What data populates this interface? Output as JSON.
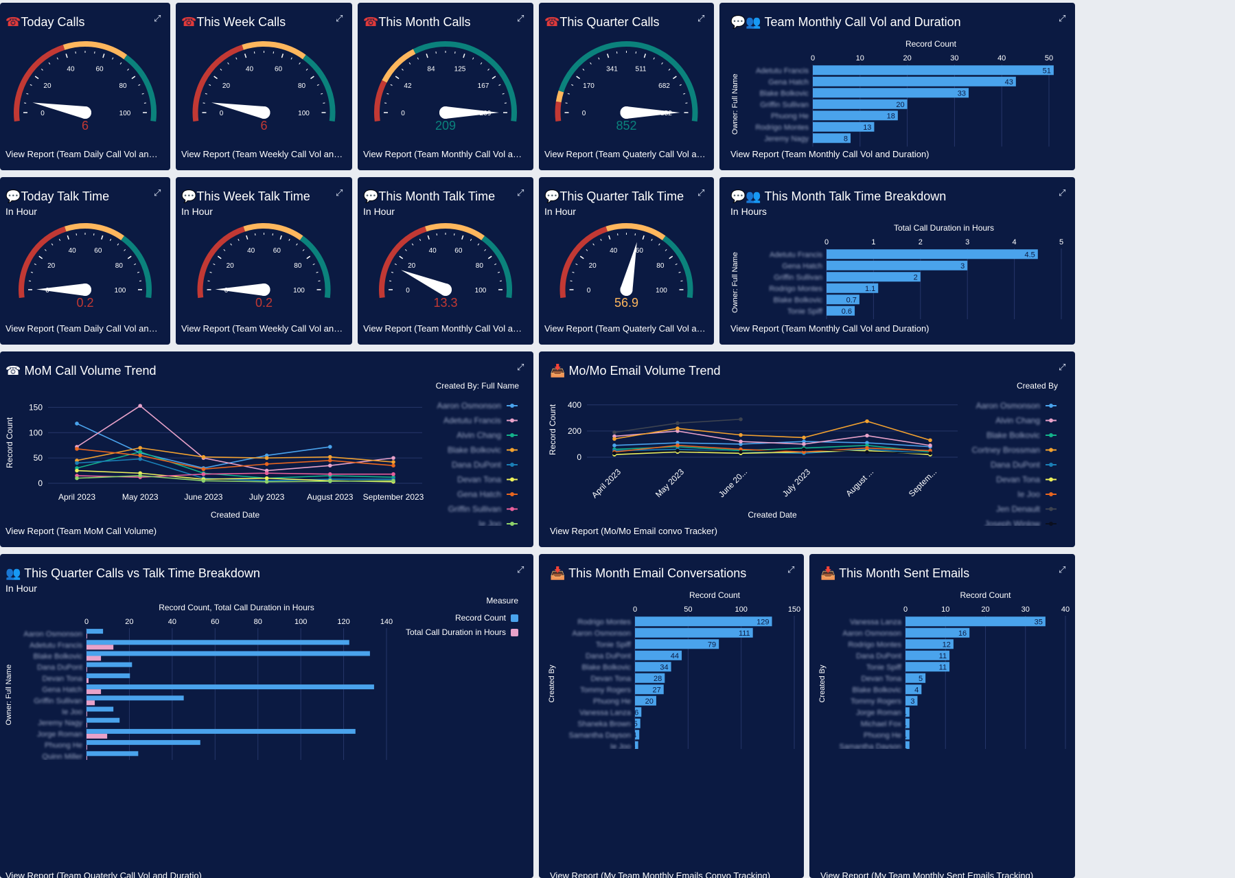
{
  "colors": {
    "bg": "#0b1a42",
    "red": "#c23934",
    "yellow": "#ffb75d",
    "green": "#0b827c",
    "bar": "#4aa3ec",
    "pink": "#e8a2c9",
    "needle": "#ffffff"
  },
  "gauges": [
    {
      "title": "Today Calls",
      "icon": "phone-icon",
      "subtitle": "",
      "ticks": [
        "0",
        "20",
        "40",
        "60",
        "80",
        "100"
      ],
      "max": 100,
      "value": 6,
      "display": "6",
      "segments": [
        [
          0,
          0.4,
          "red"
        ],
        [
          0.4,
          0.7,
          "yellow"
        ],
        [
          0.7,
          1,
          "green"
        ]
      ],
      "valueColor": "red",
      "footer": "View Report (Team Daily Call Vol and Duration)"
    },
    {
      "title": "This Week Calls",
      "icon": "phone-icon",
      "subtitle": "",
      "ticks": [
        "0",
        "20",
        "40",
        "60",
        "80",
        "100"
      ],
      "max": 100,
      "value": 6,
      "display": "6",
      "segments": [
        [
          0,
          0.4,
          "red"
        ],
        [
          0.4,
          0.7,
          "yellow"
        ],
        [
          0.7,
          1,
          "green"
        ]
      ],
      "valueColor": "red",
      "footer": "View Report (Team Weekly Call Vol and Duration)"
    },
    {
      "title": "This Month Calls",
      "icon": "phone-icon",
      "subtitle": "",
      "ticks": [
        "0",
        "42",
        "84",
        "125",
        "167",
        "209"
      ],
      "max": 209,
      "value": 209,
      "display": "209",
      "segments": [
        [
          0,
          0.15,
          "red"
        ],
        [
          0.15,
          0.35,
          "yellow"
        ],
        [
          0.35,
          1,
          "green"
        ]
      ],
      "valueColor": "green",
      "footer": "View Report (Team Monthly Call Vol and Duration)"
    },
    {
      "title": "This Quarter Calls",
      "icon": "phone-icon",
      "subtitle": "",
      "ticks": [
        "0",
        "170",
        "341",
        "511",
        "682",
        "852"
      ],
      "max": 852,
      "value": 852,
      "display": "852",
      "segments": [
        [
          0,
          0.05,
          "red"
        ],
        [
          0.05,
          0.1,
          "yellow"
        ],
        [
          0.1,
          1,
          "green"
        ]
      ],
      "valueColor": "green",
      "footer": "View Report (Team Quaterly Call Vol and Duration)"
    },
    {
      "title": "Today Talk Time",
      "icon": "chat-icon",
      "subtitle": "In Hour",
      "ticks": [
        "0",
        "20",
        "40",
        "60",
        "80",
        "100"
      ],
      "max": 100,
      "value": 0.2,
      "display": "0.2",
      "segments": [
        [
          0,
          0.4,
          "red"
        ],
        [
          0.4,
          0.7,
          "yellow"
        ],
        [
          0.7,
          1,
          "green"
        ]
      ],
      "valueColor": "red",
      "footer": "View Report (Team Daily Call Vol and Duration)"
    },
    {
      "title": "This Week Talk Time",
      "icon": "chat-icon",
      "subtitle": "In Hour",
      "ticks": [
        "0",
        "20",
        "40",
        "60",
        "80",
        "100"
      ],
      "max": 100,
      "value": 0.2,
      "display": "0.2",
      "segments": [
        [
          0,
          0.4,
          "red"
        ],
        [
          0.4,
          0.7,
          "yellow"
        ],
        [
          0.7,
          1,
          "green"
        ]
      ],
      "valueColor": "red",
      "footer": "View Report (Team Weekly Call Vol and Duration)"
    },
    {
      "title": "This Month Talk Time",
      "icon": "chat-icon",
      "subtitle": "In Hour",
      "ticks": [
        "0",
        "20",
        "40",
        "60",
        "80",
        "100"
      ],
      "max": 100,
      "value": 13.3,
      "display": "13.3",
      "segments": [
        [
          0,
          0.4,
          "red"
        ],
        [
          0.4,
          0.7,
          "yellow"
        ],
        [
          0.7,
          1,
          "green"
        ]
      ],
      "valueColor": "red",
      "footer": "View Report (Team Monthly Call Vol and Duration)"
    },
    {
      "title": "This Quarter Talk Time",
      "icon": "chat-icon",
      "subtitle": "In Hour",
      "ticks": [
        "0",
        "20",
        "40",
        "60",
        "80",
        "100"
      ],
      "max": 100,
      "value": 56.9,
      "display": "56.9",
      "segments": [
        [
          0,
          0.4,
          "red"
        ],
        [
          0.4,
          0.7,
          "yellow"
        ],
        [
          0.7,
          1,
          "green"
        ]
      ],
      "valueColor": "yellow",
      "footer": "View Report (Team Quaterly Call Vol and Duration)"
    }
  ],
  "cards": {
    "team_monthly": {
      "title": "Team Monthly Call Vol and Duration",
      "footer": "View Report (Team Monthly Call Vol and Duration)"
    },
    "talk_breakdown": {
      "title": "This Month Talk Time Breakdown",
      "subtitle": "In Hours",
      "footer": "View Report (Team Monthly Call Vol and Duration)"
    },
    "mom_calls": {
      "title": "MoM Call Volume Trend",
      "footer": "View Report (Team MoM Call Volume)"
    },
    "mom_email": {
      "title": "Mo/Mo Email Volume Trend",
      "footer": "View Report (Mo/Mo Email convo Tracker)"
    },
    "quarter_breakdown": {
      "title": "This Quarter Calls vs Talk Time Breakdown",
      "subtitle": "In Hour",
      "footer": "View Report (Team Quaterly Call Vol and Duratio)"
    },
    "email_convos": {
      "title": "This Month Email Conversations",
      "footer": "View Report (My Team Monthly Emails Convo Tracking)"
    },
    "sent_emails": {
      "title": "This Month Sent Emails",
      "footer": "View Report (My Team Monthly Sent Emails Tracking)"
    }
  },
  "chart_data": [
    {
      "id": "team_monthly",
      "type": "bar",
      "orientation": "horizontal",
      "xlabel": "Record Count",
      "ylabel": "Owner: Full Name",
      "xlim": [
        0,
        50
      ],
      "xticks": [
        "0",
        "10",
        "20",
        "30",
        "40",
        "50"
      ],
      "categories": [
        "Adetutu Francis",
        "Gena Hatch",
        "Blake Bolkovic",
        "Griffin Sullivan",
        "Phuong He",
        "Rodrigo Montes",
        "Jeremy Nagy"
      ],
      "values": [
        51,
        43,
        33,
        20,
        18,
        13,
        8
      ]
    },
    {
      "id": "talk_breakdown",
      "type": "bar",
      "orientation": "horizontal",
      "xlabel": "Total Call Duration in Hours",
      "ylabel": "Owner: Full Name",
      "xlim": [
        0,
        5
      ],
      "xticks": [
        "0",
        "1",
        "2",
        "3",
        "4",
        "5"
      ],
      "categories": [
        "Adetutu Francis",
        "Gena Hatch",
        "Griffin Sullivan",
        "Rodrigo Montes",
        "Blake Bolkovic",
        "Tonie Spiff"
      ],
      "values": [
        4.5,
        3,
        2,
        1.1,
        0.7,
        0.6
      ]
    },
    {
      "id": "mom_calls",
      "type": "line",
      "xlabel": "Created Date",
      "ylabel": "Record Count",
      "ylim": [
        0,
        160
      ],
      "yticks": [
        "0",
        "50",
        "100",
        "150"
      ],
      "legend_title": "Created By: Full Name",
      "x": [
        "April 2023",
        "May 2023",
        "June 2023",
        "July 2023",
        "August 2023",
        "September 2023"
      ],
      "series": [
        {
          "name": "Aaron Osmonson",
          "color": "#4aa3ec",
          "values": [
            118,
            60,
            30,
            55,
            72,
            null
          ]
        },
        {
          "name": "Adetutu Francis",
          "color": "#e8a2c9",
          "values": [
            72,
            153,
            50,
            25,
            35,
            50
          ]
        },
        {
          "name": "Alvin Chang",
          "color": "#13b28a",
          "values": [
            30,
            62,
            20,
            10,
            15,
            12
          ]
        },
        {
          "name": "Blake Bolkovic",
          "color": "#f2a12f",
          "values": [
            45,
            70,
            52,
            50,
            52,
            42
          ]
        },
        {
          "name": "Dana DuPont",
          "color": "#1a7fb6",
          "values": [
            40,
            48,
            10,
            5,
            8,
            8
          ]
        },
        {
          "name": "Devan Tona",
          "color": "#ecef5b",
          "values": [
            25,
            20,
            8,
            10,
            5,
            3
          ]
        },
        {
          "name": "Gena Hatch",
          "color": "#e8661f",
          "values": [
            68,
            55,
            28,
            38,
            45,
            35
          ]
        },
        {
          "name": "Griffin Sullivan",
          "color": "#e85f9b",
          "values": [
            15,
            12,
            18,
            20,
            18,
            18
          ]
        },
        {
          "name": "Ie Joo",
          "color": "#8fd36a",
          "values": [
            10,
            15,
            5,
            3,
            4,
            5
          ]
        }
      ]
    },
    {
      "id": "mom_email",
      "type": "line",
      "xlabel": "Created Date",
      "ylabel": "Record Count",
      "ylim": [
        0,
        420
      ],
      "yticks": [
        "0",
        "200",
        "400"
      ],
      "legend_title": "Created By",
      "x": [
        "April 2023",
        "May 2023",
        "June 20...",
        "July 2023",
        "August ...",
        "Septem..."
      ],
      "series": [
        {
          "name": "Aaron Osmonson",
          "color": "#4aa3ec",
          "values": [
            90,
            110,
            100,
            120,
            110,
            80
          ]
        },
        {
          "name": "Alvin Chang",
          "color": "#e8a2c9",
          "values": [
            160,
            200,
            120,
            100,
            165,
            90
          ]
        },
        {
          "name": "Blake Bolkovic",
          "color": "#13b28a",
          "values": [
            60,
            80,
            50,
            70,
            90,
            40
          ]
        },
        {
          "name": "Cortney Brossman",
          "color": "#f2a12f",
          "values": [
            140,
            220,
            170,
            150,
            275,
            130
          ]
        },
        {
          "name": "Dana DuPont",
          "color": "#1a7fb6",
          "values": [
            50,
            60,
            40,
            30,
            60,
            30
          ]
        },
        {
          "name": "Devan Tona",
          "color": "#ecef5b",
          "values": [
            20,
            40,
            30,
            40,
            50,
            20
          ]
        },
        {
          "name": "Ie Joo",
          "color": "#e8661f",
          "values": [
            40,
            90,
            60,
            40,
            70,
            50
          ]
        },
        {
          "name": "Jen Denault",
          "color": "#3d4350",
          "values": [
            190,
            260,
            290,
            null,
            null,
            null
          ]
        },
        {
          "name": "Joseph Winlow",
          "color": "#0a0f1f",
          "values": [
            30,
            50,
            40,
            60,
            40,
            30
          ]
        }
      ]
    },
    {
      "id": "quarter_breakdown",
      "type": "bar",
      "orientation": "horizontal",
      "xlabel": "Record Count, Total Call Duration in Hours",
      "ylabel": "Owner: Full Name",
      "xlim": [
        0,
        145
      ],
      "xticks": [
        "0",
        "20",
        "40",
        "60",
        "80",
        "100",
        "120",
        "140"
      ],
      "legend_title": "Measure",
      "categories": [
        "Aaron Osmonson",
        "Adetutu Francis",
        "Blake Bolkovic",
        "Dana DuPont",
        "Devan Tona",
        "Gena Hatch",
        "Griffin Sullivan",
        "Ie Joo",
        "Jeremy Nagy",
        "Jorge Roman",
        "Phuong He",
        "Quinn Miller"
      ],
      "series": [
        {
          "name": "Record Count",
          "color": "#4aa3ec",
          "values": [
            8,
            127,
            137,
            22,
            21,
            139,
            47,
            13,
            16,
            130,
            55,
            25
          ]
        },
        {
          "name": "Total Call Duration in Hours",
          "color": "#e8a2c9",
          "values": [
            0,
            13,
            7,
            0,
            1,
            7,
            4,
            0,
            0,
            10,
            0,
            0
          ]
        }
      ]
    },
    {
      "id": "email_convos",
      "type": "bar",
      "orientation": "horizontal",
      "xlabel": "Record Count",
      "ylabel": "Created By",
      "xlim": [
        0,
        150
      ],
      "xticks": [
        "0",
        "50",
        "100",
        "150"
      ],
      "categories": [
        "Rodrigo Montes",
        "Aaron Osmonson",
        "Tonie Spiff",
        "Dana DuPont",
        "Blake Bolkovic",
        "Devan Tona",
        "Tommy Rogers",
        "Phuong He",
        "Vanessa Lanza",
        "Shaneka Brown",
        "Samantha Dayson",
        "Ie Joo"
      ],
      "values": [
        129,
        111,
        79,
        44,
        34,
        28,
        27,
        20,
        6,
        5,
        4,
        3
      ]
    },
    {
      "id": "sent_emails",
      "type": "bar",
      "orientation": "horizontal",
      "xlabel": "Record Count",
      "ylabel": "Created By",
      "xlim": [
        0,
        40
      ],
      "xticks": [
        "0",
        "10",
        "20",
        "30",
        "40"
      ],
      "categories": [
        "Vanessa Lanza",
        "Aaron Osmonson",
        "Rodrigo Montes",
        "Dana DuPont",
        "Tonie Spiff",
        "Devan Tona",
        "Blake Bolkovic",
        "Tommy Rogers",
        "Jorge Roman",
        "Michael Fox",
        "Phuong He",
        "Samantha Dayson"
      ],
      "values": [
        35,
        16,
        12,
        11,
        11,
        5,
        4,
        3,
        1,
        1,
        1,
        1
      ]
    }
  ]
}
